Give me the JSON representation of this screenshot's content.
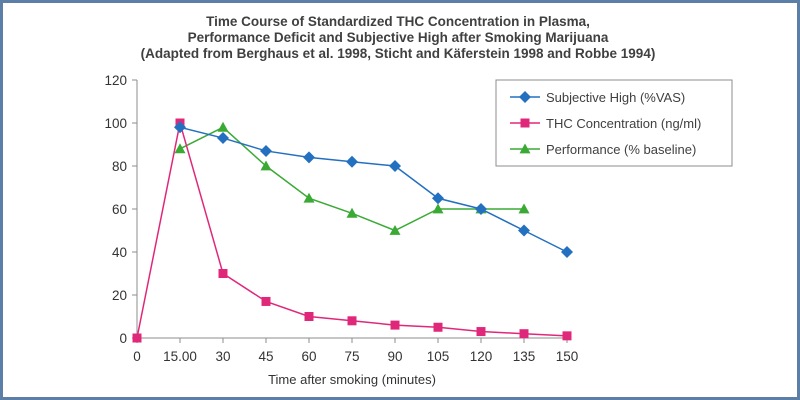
{
  "chart_data": {
    "type": "line",
    "title": [
      "Time Course of Standardized THC Concentration in Plasma,",
      "Performance Deficit and Subjective High after Smoking Marijuana",
      "(Adapted from Berghaus et al. 1998, Sticht and Käferstein 1998 and Robbe 1994)"
    ],
    "xlabel": "Time after smoking (minutes)",
    "ylabel": "",
    "x_ticks": [
      "0",
      "15.00",
      "30",
      "45",
      "60",
      "75",
      "90",
      "105",
      "120",
      "135",
      "150"
    ],
    "y_ticks": [
      "0",
      "20",
      "40",
      "60",
      "80",
      "100",
      "120"
    ],
    "xlim": [
      0,
      150
    ],
    "ylim": [
      0,
      120
    ],
    "grid": false,
    "legend_position": "top-right",
    "series": [
      {
        "name": "Subjective High (%VAS)",
        "color": "#2470c0",
        "marker": "diamond",
        "x": [
          15,
          30,
          45,
          60,
          75,
          90,
          105,
          120,
          135,
          150
        ],
        "y": [
          98,
          93,
          87,
          84,
          82,
          80,
          65,
          60,
          50,
          40
        ]
      },
      {
        "name": "THC Concentration (ng/ml)",
        "color": "#e0287a",
        "marker": "square",
        "x": [
          0,
          15,
          30,
          45,
          60,
          75,
          90,
          105,
          120,
          135,
          150
        ],
        "y": [
          0,
          100,
          30,
          17,
          10,
          8,
          6,
          5,
          3,
          2,
          1
        ]
      },
      {
        "name": "Performance (% baseline)",
        "color": "#3aaa35",
        "marker": "triangle",
        "x": [
          15,
          30,
          45,
          60,
          75,
          90,
          105,
          120,
          135
        ],
        "y": [
          88,
          98,
          80,
          65,
          58,
          50,
          60,
          60,
          60
        ]
      }
    ]
  }
}
